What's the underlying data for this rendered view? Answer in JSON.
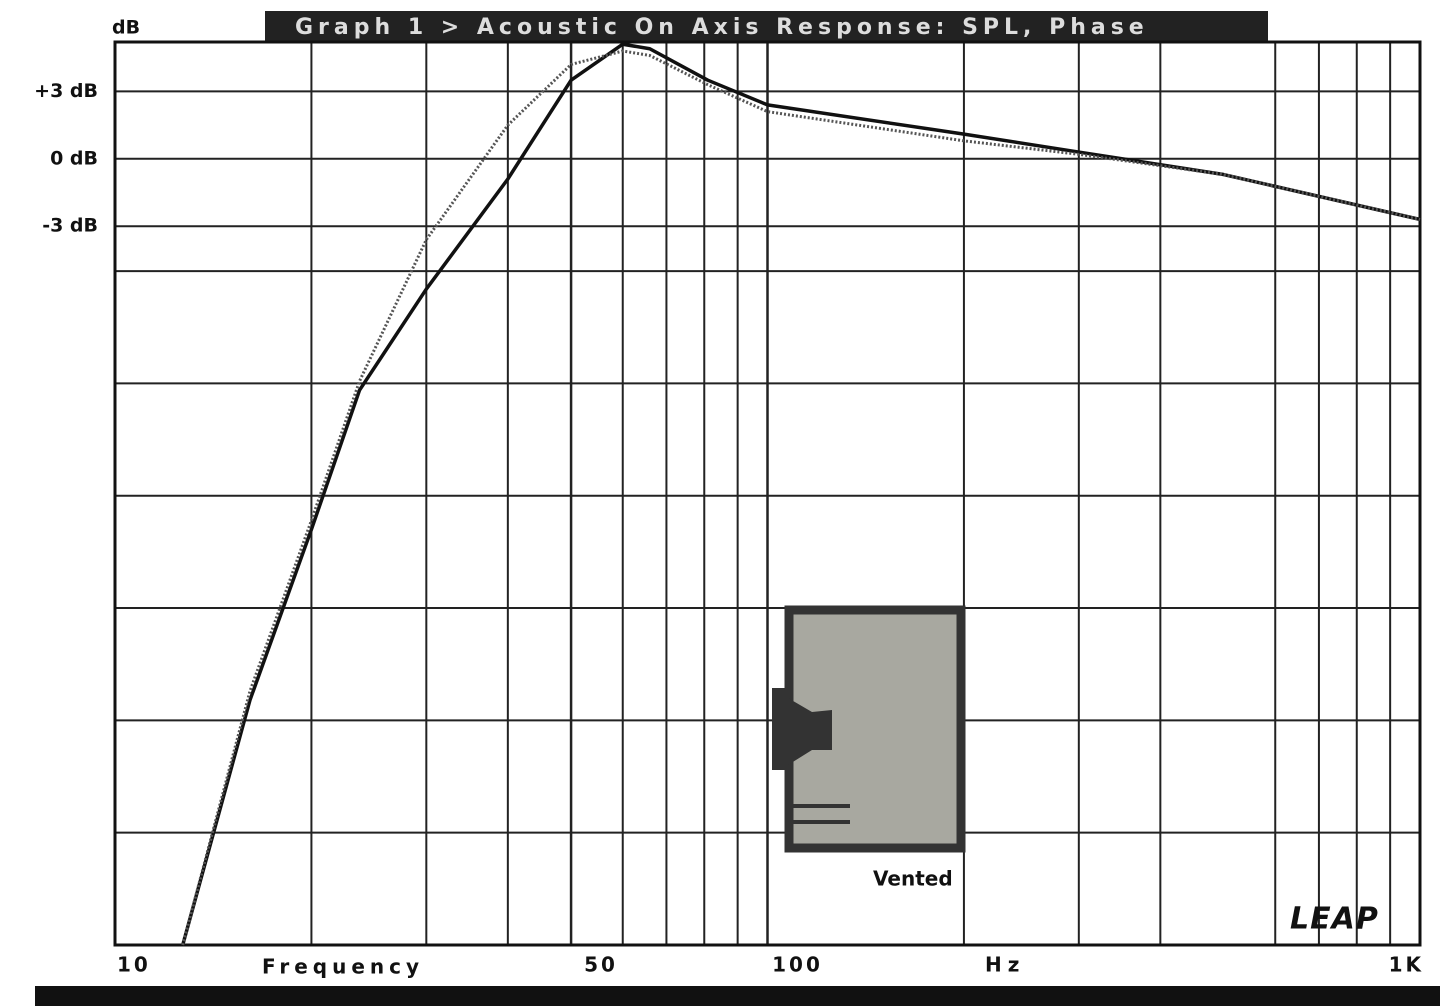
{
  "chart_data": {
    "type": "line",
    "title": "Graph 1 > Acoustic On Axis Response: SPL, Phase",
    "y_unit": "dB",
    "x_label": "Frequency",
    "x_unit": "Hz",
    "annotations": [
      "Vented",
      "LEAP"
    ],
    "log_x": true,
    "grid": true,
    "xlim": [
      10,
      1000
    ],
    "xticks": [
      10,
      50,
      100,
      {
        "value": 1000,
        "label": "1K"
      }
    ],
    "xminor": [
      20,
      30,
      40,
      60,
      70,
      80,
      90,
      200,
      300,
      400,
      600,
      700,
      800,
      900
    ],
    "ylim": [
      -35,
      5.2
    ],
    "yticks": [
      {
        "value": 3,
        "label": "+3 dB"
      },
      {
        "value": 0,
        "label": "0 dB"
      },
      {
        "value": -3,
        "label": "-3 dB"
      }
    ],
    "yminor": [
      -5,
      -10,
      -15,
      -20,
      -25,
      -30
    ],
    "x": [
      12.7,
      16.1,
      20,
      23.7,
      30,
      40,
      50,
      60,
      66,
      81,
      100,
      200,
      300,
      500,
      1000
    ],
    "series": [
      {
        "color": "#111111",
        "dash": false,
        "values": [
          -35,
          -24.1,
          -16.5,
          -10.3,
          -5.8,
          -0.9,
          3.5,
          5.1,
          4.9,
          3.5,
          2.4,
          1.1,
          0.3,
          -0.7,
          -2.7
        ]
      },
      {
        "color": "#555555",
        "dash": true,
        "values": [
          -35,
          -23.7,
          -16.1,
          -9.9,
          -3.6,
          1.5,
          4.2,
          4.8,
          4.6,
          3.3,
          2.1,
          0.8,
          0.2,
          -0.7,
          -2.7
        ]
      }
    ]
  }
}
